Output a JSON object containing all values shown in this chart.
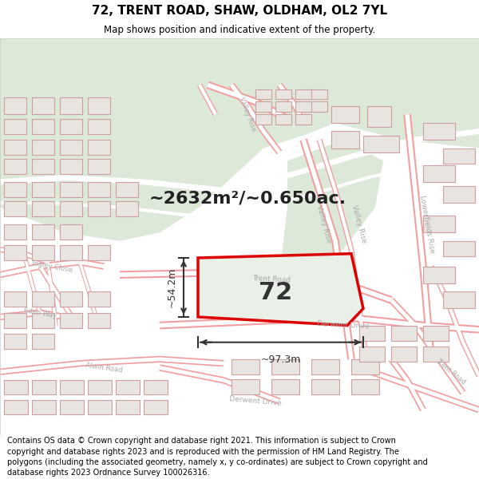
{
  "title": "72, TRENT ROAD, SHAW, OLDHAM, OL2 7YL",
  "subtitle": "Map shows position and indicative extent of the property.",
  "footer": "Contains OS data © Crown copyright and database right 2021. This information is subject to Crown copyright and database rights 2023 and is reproduced with the permission of HM Land Registry. The polygons (including the associated geometry, namely x, y co-ordinates) are subject to Crown copyright and database rights 2023 Ordnance Survey 100026316.",
  "area_label": "~2632m²/~0.650ac.",
  "plot_number": "72",
  "dim_width": "~97.3m",
  "dim_height": "~54.2m",
  "map_bg": "#ffffff",
  "plot_fill": "#e8f0e8",
  "plot_edge": "#dd0000",
  "road_outline": "#f0a0a0",
  "road_center": "#ffffff",
  "building_fill": "#e8e4e0",
  "building_edge": "#d0a0a0",
  "green_fill": "#dce8d8",
  "green_path": "#ffffff",
  "street_color": "#aaaaaa",
  "dim_color": "#333333",
  "title_fontsize": 11,
  "subtitle_fontsize": 8.5,
  "footer_fontsize": 7.0,
  "area_fontsize": 16
}
